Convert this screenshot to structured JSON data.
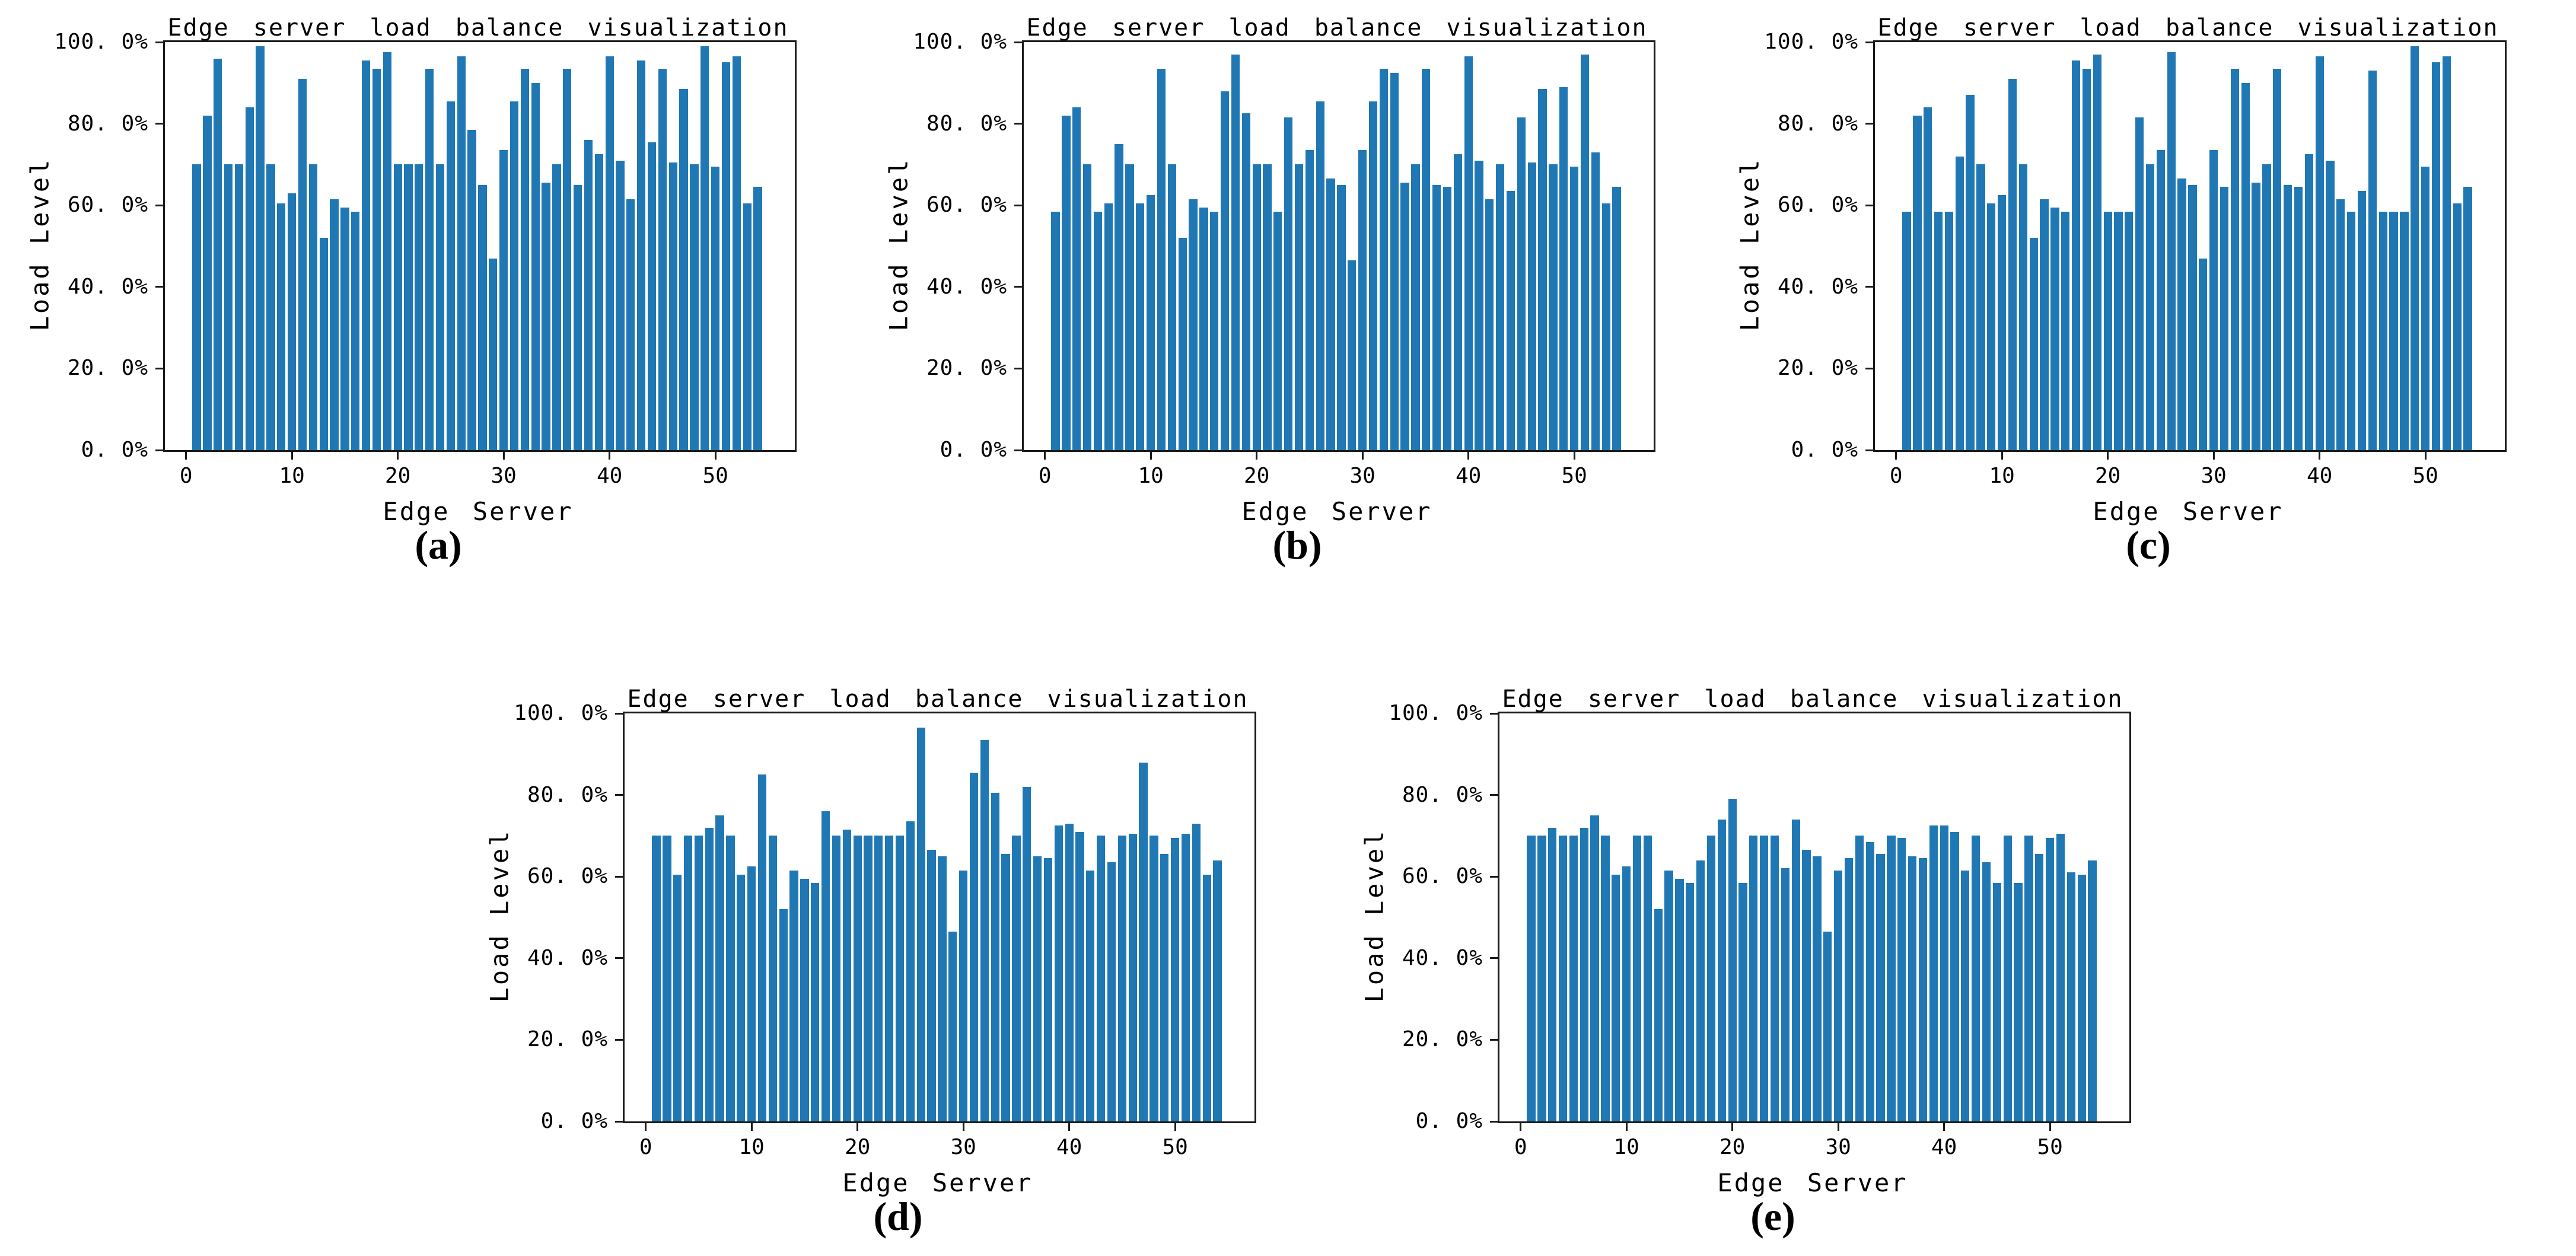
{
  "page": {
    "background": "#ffffff"
  },
  "chart_data": [
    {
      "type": "bar",
      "label": "(a)",
      "title": "Edge server load balance visualization",
      "xlabel": "Edge Server",
      "ylabel": "Load Level",
      "legend": "none",
      "grid": false,
      "bar_color": "#1f77b4",
      "xlim": [
        -2.0,
        57.5
      ],
      "ylim": [
        0,
        100
      ],
      "x_start": 1,
      "x_tick_values": [
        0,
        10,
        20,
        30,
        40,
        50
      ],
      "x_tick_labels": [
        "0",
        "10",
        "20",
        "30",
        "40",
        "50"
      ],
      "y_tick_values": [
        0,
        20,
        40,
        60,
        80,
        100
      ],
      "y_tick_labels": [
        "0. 0%",
        "20. 0%",
        "40. 0%",
        "60. 0%",
        "80. 0%",
        "100. 0%"
      ],
      "values": [
        70,
        82,
        96,
        70,
        70,
        84,
        99,
        70,
        60.5,
        63,
        91,
        70,
        52,
        61.5,
        59.5,
        58.5,
        95.5,
        93.5,
        97.5,
        70,
        70,
        70,
        93.5,
        70,
        85.5,
        96.5,
        78.5,
        65,
        47,
        73.5,
        85.5,
        93.5,
        90,
        65.5,
        70,
        93.5,
        65,
        76,
        72.5,
        96.5,
        71,
        61.5,
        95.5,
        75.5,
        93.5,
        70.5,
        88.5,
        70,
        99,
        69.5,
        95,
        96.5,
        60.5,
        64.5
      ]
    },
    {
      "type": "bar",
      "label": "(b)",
      "title": "Edge server load balance visualization",
      "xlabel": "Edge Server",
      "ylabel": "Load Level",
      "legend": "none",
      "grid": false,
      "bar_color": "#1f77b4",
      "xlim": [
        -2.0,
        57.5
      ],
      "ylim": [
        0,
        100
      ],
      "x_start": 1,
      "x_tick_values": [
        0,
        10,
        20,
        30,
        40,
        50
      ],
      "x_tick_labels": [
        "0",
        "10",
        "20",
        "30",
        "40",
        "50"
      ],
      "y_tick_values": [
        0,
        20,
        40,
        60,
        80,
        100
      ],
      "y_tick_labels": [
        "0. 0%",
        "20. 0%",
        "40. 0%",
        "60. 0%",
        "80. 0%",
        "100. 0%"
      ],
      "values": [
        58.5,
        82,
        84,
        70,
        58.5,
        60.5,
        75,
        70,
        60.5,
        62.5,
        93.5,
        70,
        52,
        61.5,
        59.5,
        58.5,
        88,
        97,
        82.5,
        70,
        70,
        58.5,
        81.5,
        70,
        73.5,
        85.5,
        66.5,
        65,
        46.5,
        73.5,
        85.5,
        93.5,
        92.5,
        65.5,
        70,
        93.5,
        65,
        64.5,
        72.5,
        96.5,
        71,
        61.5,
        70,
        63.5,
        81.5,
        70.5,
        88.5,
        70,
        89,
        69.5,
        97,
        73,
        60.5,
        64.5
      ]
    },
    {
      "type": "bar",
      "label": "(c)",
      "title": "Edge server load balance visualization",
      "xlabel": "Edge Server",
      "ylabel": "Load Level",
      "legend": "none",
      "grid": false,
      "bar_color": "#1f77b4",
      "xlim": [
        -2.0,
        57.5
      ],
      "ylim": [
        0,
        100
      ],
      "x_start": 1,
      "x_tick_values": [
        0,
        10,
        20,
        30,
        40,
        50
      ],
      "x_tick_labels": [
        "0",
        "10",
        "20",
        "30",
        "40",
        "50"
      ],
      "y_tick_values": [
        0,
        20,
        40,
        60,
        80,
        100
      ],
      "y_tick_labels": [
        "0. 0%",
        "20. 0%",
        "40. 0%",
        "60. 0%",
        "80. 0%",
        "100. 0%"
      ],
      "values": [
        58.5,
        82,
        84,
        58.5,
        58.5,
        72,
        87,
        70,
        60.5,
        62.5,
        91,
        70,
        52,
        61.5,
        59.5,
        58.5,
        95.5,
        93.5,
        97,
        58.5,
        58.5,
        58.5,
        81.5,
        70,
        73.5,
        97.5,
        66.5,
        65,
        47,
        73.5,
        64.5,
        93.5,
        90,
        65.5,
        70,
        93.5,
        65,
        64.5,
        72.5,
        96.5,
        71,
        61.5,
        58.5,
        63.5,
        93,
        58.5,
        58.5,
        58.5,
        99,
        69.5,
        95,
        96.5,
        60.5,
        64.5
      ]
    },
    {
      "type": "bar",
      "label": "(d)",
      "title": "Edge server load balance visualization",
      "xlabel": "Edge Server",
      "ylabel": "Load Level",
      "legend": "none",
      "grid": false,
      "bar_color": "#1f77b4",
      "xlim": [
        -2.0,
        57.5
      ],
      "ylim": [
        0,
        100
      ],
      "x_start": 1,
      "x_tick_values": [
        0,
        10,
        20,
        30,
        40,
        50
      ],
      "x_tick_labels": [
        "0",
        "10",
        "20",
        "30",
        "40",
        "50"
      ],
      "y_tick_values": [
        0,
        20,
        40,
        60,
        80,
        100
      ],
      "y_tick_labels": [
        "0. 0%",
        "20. 0%",
        "40. 0%",
        "60. 0%",
        "80. 0%",
        "100. 0%"
      ],
      "values": [
        70,
        70,
        60.5,
        70,
        70,
        72,
        75,
        70,
        60.5,
        62.5,
        85,
        70,
        52,
        61.5,
        59.5,
        58.5,
        76,
        70,
        71.5,
        70,
        70,
        70,
        70,
        70,
        73.5,
        96.5,
        66.5,
        65,
        46.5,
        61.5,
        85.5,
        93.5,
        80.5,
        65.5,
        70,
        82,
        65,
        64.5,
        72.5,
        73,
        71,
        61.5,
        70,
        63.5,
        70,
        70.5,
        88,
        70,
        65.5,
        69.5,
        70.5,
        73,
        60.5,
        64
      ]
    },
    {
      "type": "bar",
      "label": "(e)",
      "title": "Edge server load balance visualization",
      "xlabel": "Edge Server",
      "ylabel": "Load Level",
      "legend": "none",
      "grid": false,
      "bar_color": "#1f77b4",
      "xlim": [
        -2.0,
        57.5
      ],
      "ylim": [
        0,
        100
      ],
      "x_start": 1,
      "x_tick_values": [
        0,
        10,
        20,
        30,
        40,
        50
      ],
      "x_tick_labels": [
        "0",
        "10",
        "20",
        "30",
        "40",
        "50"
      ],
      "y_tick_values": [
        0,
        20,
        40,
        60,
        80,
        100
      ],
      "y_tick_labels": [
        "0. 0%",
        "20. 0%",
        "40. 0%",
        "60. 0%",
        "80. 0%",
        "100. 0%"
      ],
      "values": [
        70,
        70,
        72,
        70,
        70,
        72,
        75,
        70,
        60.5,
        62.5,
        70,
        70,
        52,
        61.5,
        59.5,
        58.5,
        64,
        70,
        74,
        79,
        58.5,
        70,
        70,
        70,
        62,
        74,
        66.5,
        65,
        46.5,
        61.5,
        64.5,
        70,
        68.5,
        65.5,
        70,
        69.5,
        65,
        64.5,
        72.5,
        72.5,
        71,
        61.5,
        70,
        63.5,
        58.5,
        70,
        58.5,
        70,
        65.5,
        69.5,
        70.5,
        61,
        60.5,
        64
      ]
    }
  ]
}
